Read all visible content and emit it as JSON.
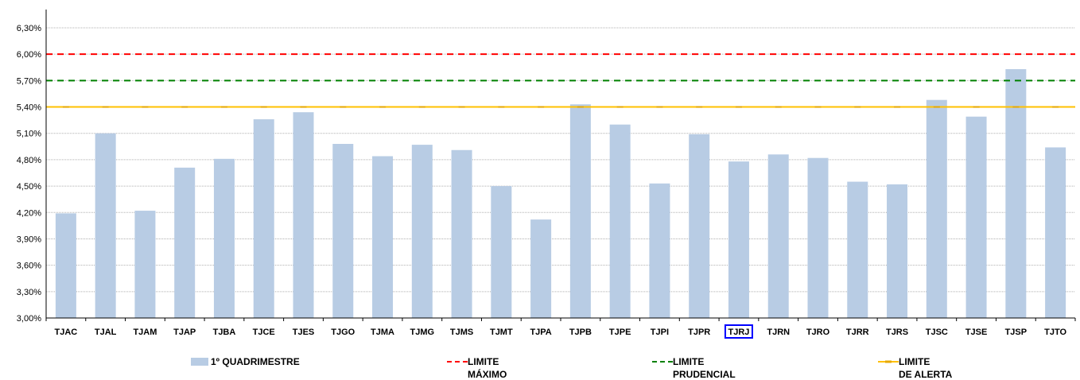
{
  "chart_data": {
    "type": "bar",
    "categories": [
      "TJAC",
      "TJAL",
      "TJAM",
      "TJAP",
      "TJBA",
      "TJCE",
      "TJES",
      "TJGO",
      "TJMA",
      "TJMG",
      "TJMS",
      "TJMT",
      "TJPA",
      "TJPB",
      "TJPE",
      "TJPI",
      "TJPR",
      "TJRJ",
      "TJRN",
      "TJRO",
      "TJRR",
      "TJRS",
      "TJSC",
      "TJSE",
      "TJSP",
      "TJTO"
    ],
    "highlighted_category": "TJRJ",
    "series": [
      {
        "name": "1º QUADRIMESTRE",
        "values": [
          4.19,
          5.1,
          4.22,
          4.71,
          4.81,
          5.26,
          5.34,
          4.98,
          4.84,
          4.97,
          4.91,
          4.5,
          4.12,
          5.43,
          5.2,
          4.53,
          5.09,
          4.78,
          4.86,
          4.82,
          4.55,
          4.52,
          5.48,
          5.29,
          5.83,
          4.94
        ],
        "color": "#b8cce4"
      }
    ],
    "reference_lines": [
      {
        "name": "LIMITE MÁXIMO",
        "name_lines": [
          "LIMITE",
          "MÁXIMO"
        ],
        "value": 6.0,
        "color": "#ff0000",
        "style": "dashed"
      },
      {
        "name": "LIMITE PRUDENCIAL",
        "name_lines": [
          "LIMITE",
          "PRUDENCIAL"
        ],
        "value": 5.7,
        "color": "#008000",
        "style": "dashed"
      },
      {
        "name": "LIMITE DE ALERTA",
        "name_lines": [
          "LIMITE",
          "DE ALERTA"
        ],
        "value": 5.4,
        "color": "#ffc000",
        "style": "solid-marker"
      }
    ],
    "yticks": [
      "3,00%",
      "3,30%",
      "3,60%",
      "3,90%",
      "4,20%",
      "4,50%",
      "4,80%",
      "5,10%",
      "5,40%",
      "5,70%",
      "6,00%",
      "6,30%"
    ],
    "ylim": [
      3.0,
      6.5
    ],
    "title": "",
    "xlabel": "",
    "ylabel": "",
    "grid": true,
    "legend_position": "bottom"
  }
}
